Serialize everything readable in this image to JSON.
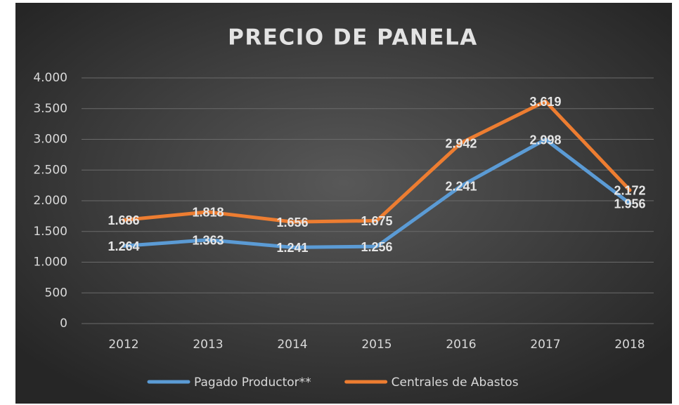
{
  "chart_data": {
    "type": "line",
    "title": "PRECIO DE PANELA",
    "categories": [
      "2012",
      "2013",
      "2014",
      "2015",
      "2016",
      "2017",
      "2018"
    ],
    "series": [
      {
        "name": "Pagado Productor**",
        "color": "#5b9bd5",
        "values": [
          1264,
          1363,
          1241,
          1256,
          2241,
          2998,
          1956
        ],
        "value_labels": [
          "1.264",
          "1.363",
          "1.241",
          "1.256",
          "2.241",
          "2.998",
          "1.956"
        ]
      },
      {
        "name": "Centrales de Abastos",
        "color": "#ed7d31",
        "values": [
          1686,
          1818,
          1656,
          1675,
          2942,
          3619,
          2172
        ],
        "value_labels": [
          "1.686",
          "1.818",
          "1.656",
          "1.675",
          "2.942",
          "3.619",
          "2.172"
        ]
      }
    ],
    "ylim": [
      0,
      4000
    ],
    "yticks": [
      0,
      500,
      {
        "value": 1000,
        "label": "1.000"
      },
      {
        "value": 1500,
        "label": "1.500"
      },
      {
        "value": 2000,
        "label": "2.000"
      },
      {
        "value": 2500,
        "label": "2.500"
      },
      {
        "value": 3000,
        "label": "3.000"
      },
      {
        "value": 3500,
        "label": "3.500"
      },
      {
        "value": 4000,
        "label": "4.000"
      }
    ],
    "grid": true,
    "legend": "bottom"
  }
}
